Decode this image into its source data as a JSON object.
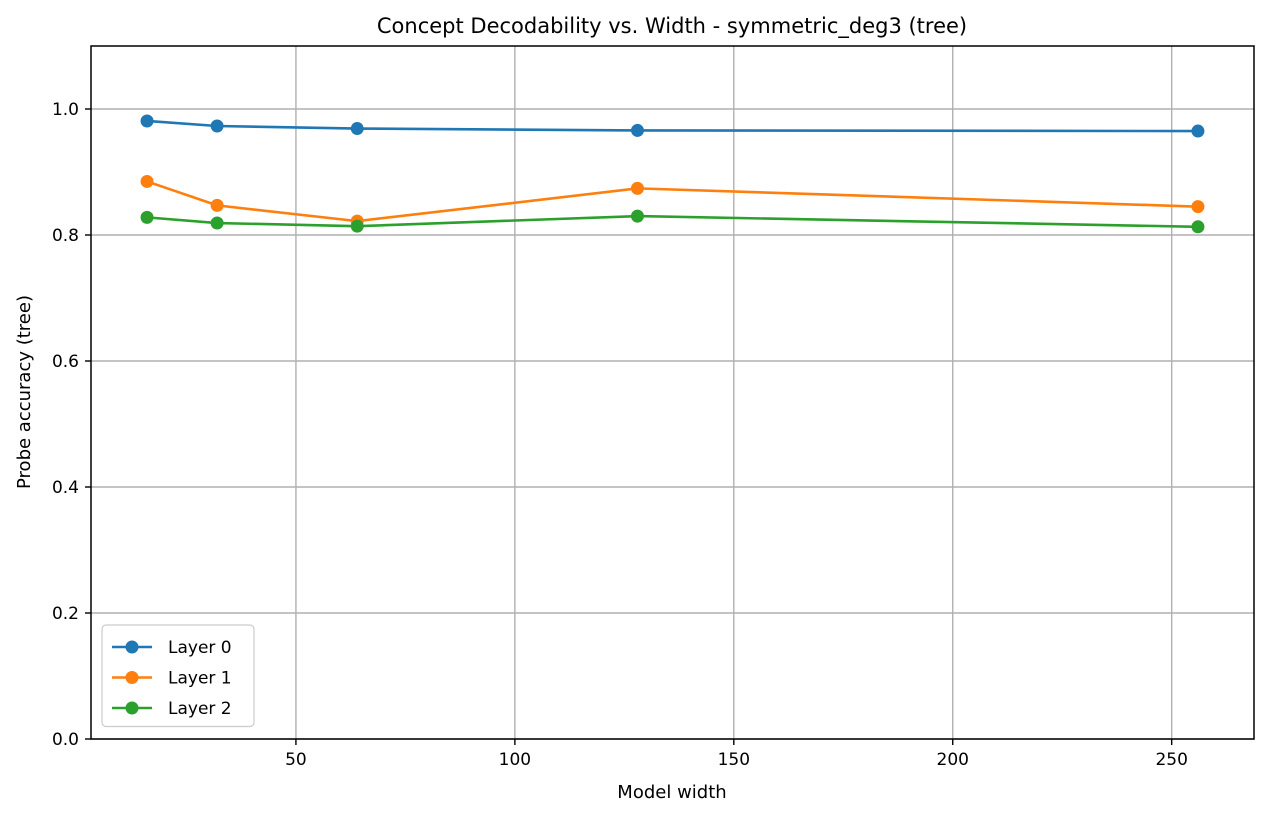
{
  "chart_data": {
    "type": "line",
    "title": "Concept Decodability vs. Width - symmetric_deg3 (tree)",
    "xlabel": "Model width",
    "ylabel": "Probe accuracy (tree)",
    "xlim": [
      3.2,
      268.8
    ],
    "ylim": [
      0,
      1.1
    ],
    "xticks": [
      50,
      100,
      150,
      200,
      250
    ],
    "yticks": [
      0.0,
      0.2,
      0.4,
      0.6,
      0.8,
      1.0
    ],
    "xtick_labels": [
      "50",
      "100",
      "150",
      "200",
      "250"
    ],
    "ytick_labels": [
      "0.0",
      "0.2",
      "0.4",
      "0.6",
      "0.8",
      "1.0"
    ],
    "grid": true,
    "legend_position": "bottom-left",
    "x": [
      16,
      32,
      64,
      128,
      256
    ],
    "series": [
      {
        "name": "Layer 0",
        "color": "#1f77b4",
        "values": [
          0.981,
          0.973,
          0.969,
          0.966,
          0.965
        ]
      },
      {
        "name": "Layer 1",
        "color": "#ff7f0e",
        "values": [
          0.885,
          0.847,
          0.822,
          0.874,
          0.845
        ]
      },
      {
        "name": "Layer 2",
        "color": "#2ca02c",
        "values": [
          0.828,
          0.819,
          0.814,
          0.83,
          0.813
        ]
      }
    ]
  }
}
